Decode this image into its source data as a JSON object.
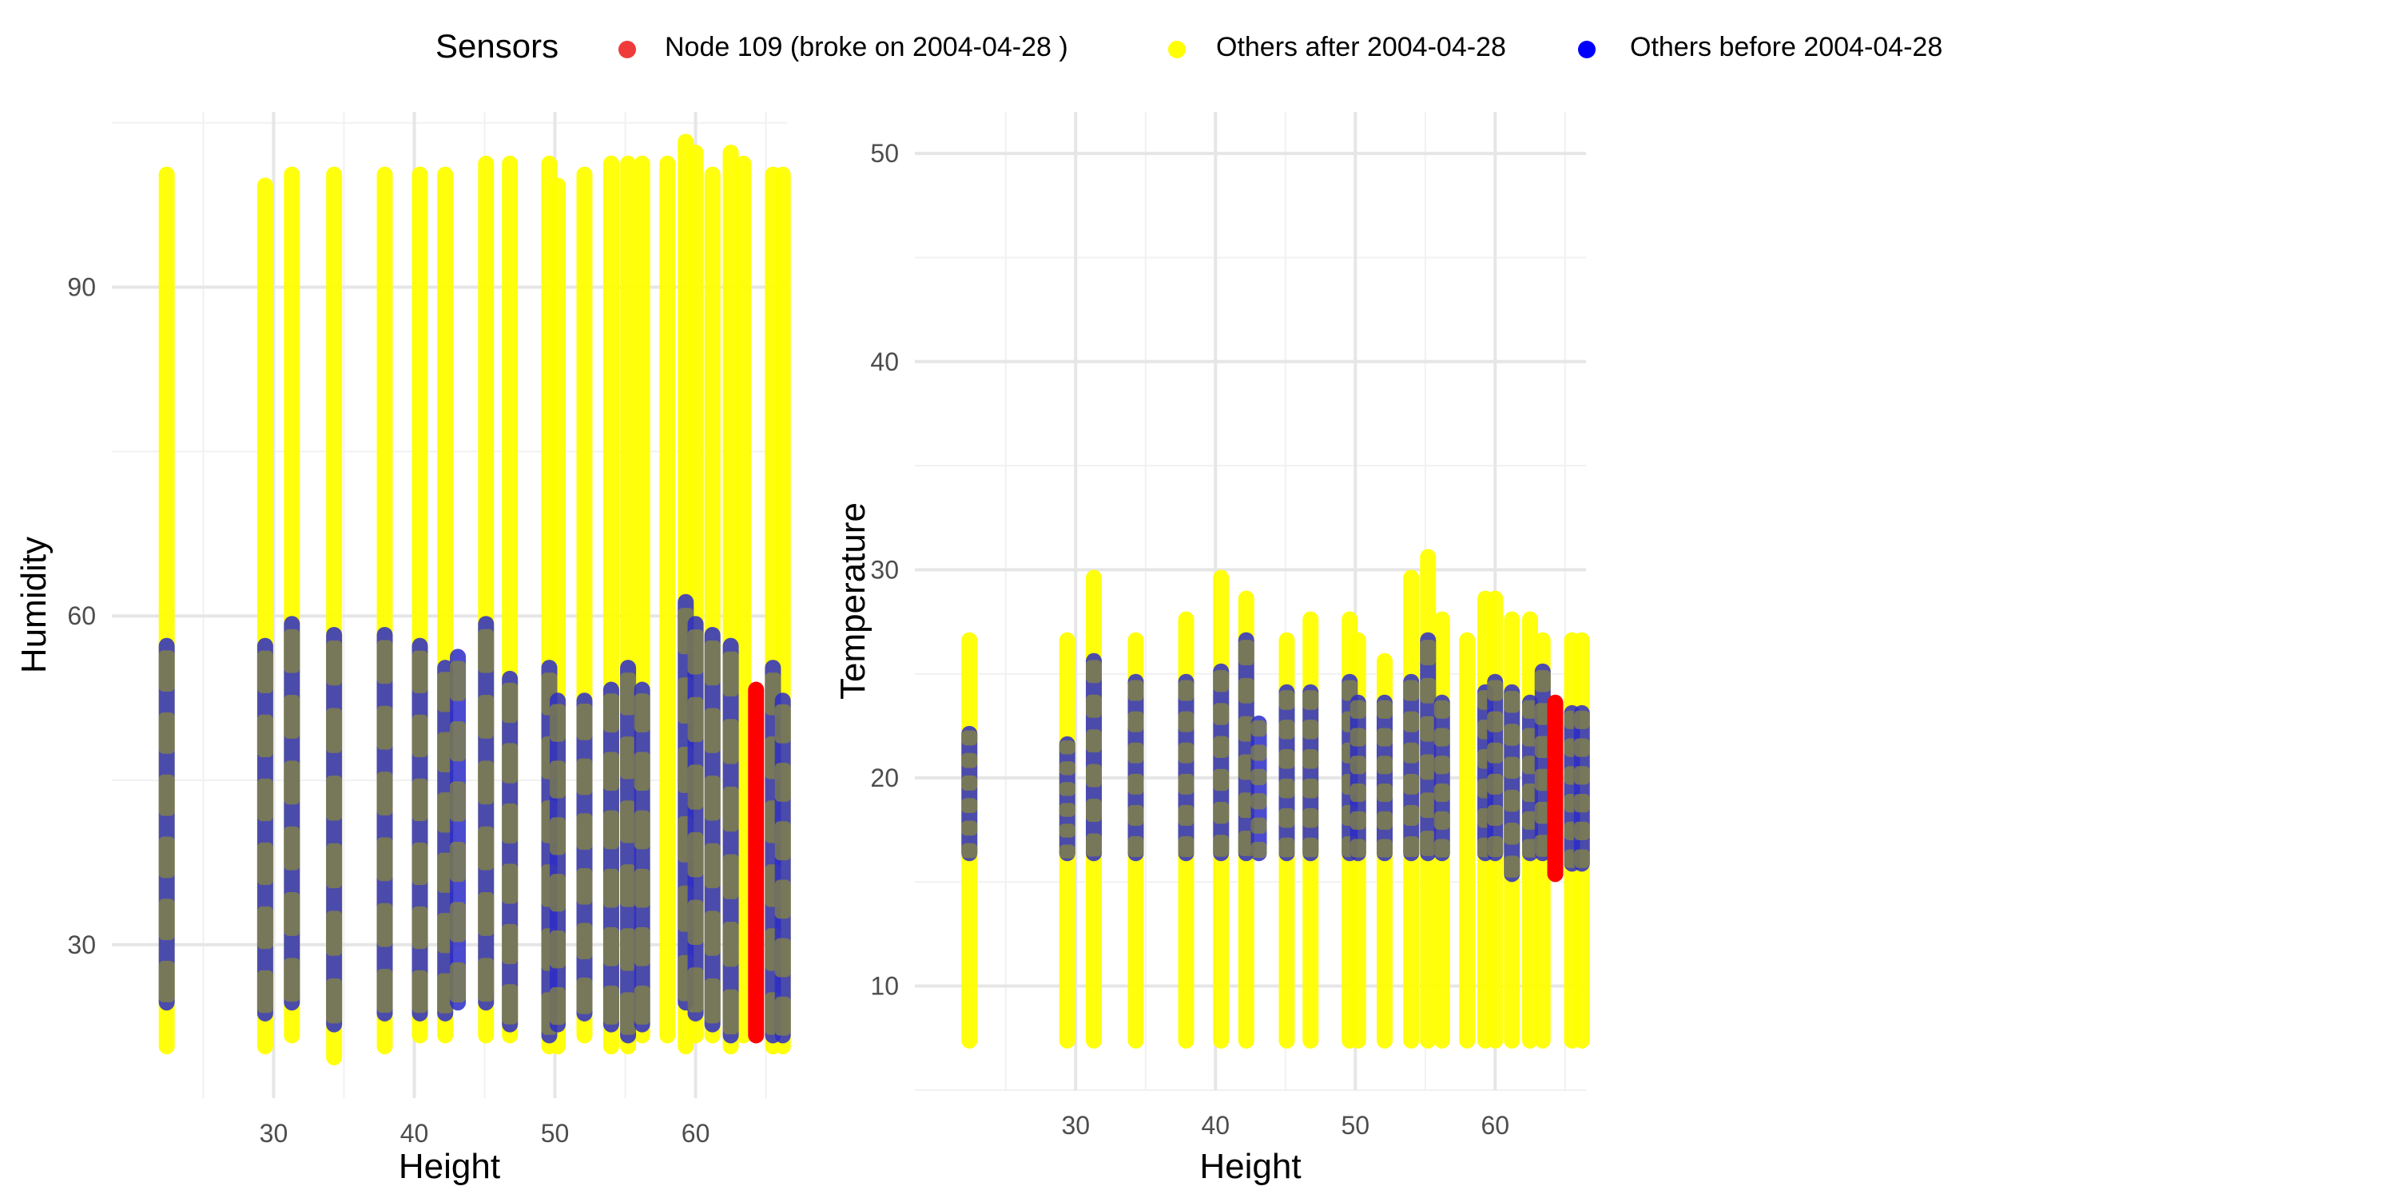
{
  "legend": {
    "title": "Sensors",
    "items": [
      {
        "label": "Node  109 (broke on  2004-04-28 )",
        "color": "#f03b3b"
      },
      {
        "label": "Others after  2004-04-28",
        "color": "#ffff00"
      },
      {
        "label": "Others before  2004-04-28",
        "color": "#0000ff"
      }
    ]
  },
  "colors": {
    "node109": "#ff0000",
    "after": "#ffff00",
    "before": "#2b2bc8",
    "before_overlap": "#8a8a38"
  },
  "chart_data": [
    {
      "type": "scatter",
      "title": "",
      "xlabel": "Height",
      "ylabel": "Humidity",
      "xlim": [
        18.5,
        66.5
      ],
      "ylim": [
        16,
        106
      ],
      "xticks": [
        30,
        40,
        50,
        60
      ],
      "yticks": [
        30,
        60,
        90
      ],
      "grid": true,
      "series": [
        {
          "name": "Others after  2004-04-28",
          "points": [
            {
              "x": 22.4,
              "y0": 20,
              "y1": 101
            },
            {
              "x": 29.4,
              "y0": 20,
              "y1": 100
            },
            {
              "x": 31.3,
              "y0": 21,
              "y1": 101
            },
            {
              "x": 34.3,
              "y0": 19,
              "y1": 101
            },
            {
              "x": 37.9,
              "y0": 20,
              "y1": 101
            },
            {
              "x": 40.4,
              "y0": 21,
              "y1": 101
            },
            {
              "x": 42.2,
              "y0": 21,
              "y1": 101
            },
            {
              "x": 45.1,
              "y0": 21,
              "y1": 102
            },
            {
              "x": 46.8,
              "y0": 21,
              "y1": 102
            },
            {
              "x": 49.6,
              "y0": 20,
              "y1": 102
            },
            {
              "x": 50.2,
              "y0": 20,
              "y1": 100
            },
            {
              "x": 52.1,
              "y0": 21,
              "y1": 101
            },
            {
              "x": 54.0,
              "y0": 20,
              "y1": 102
            },
            {
              "x": 55.2,
              "y0": 20,
              "y1": 102
            },
            {
              "x": 56.2,
              "y0": 21,
              "y1": 102
            },
            {
              "x": 58.0,
              "y0": 21,
              "y1": 102
            },
            {
              "x": 59.3,
              "y0": 20,
              "y1": 104
            },
            {
              "x": 60.0,
              "y0": 21,
              "y1": 103
            },
            {
              "x": 61.2,
              "y0": 21,
              "y1": 101
            },
            {
              "x": 62.5,
              "y0": 20,
              "y1": 103
            },
            {
              "x": 63.4,
              "y0": 21,
              "y1": 102
            },
            {
              "x": 65.5,
              "y0": 20,
              "y1": 101
            },
            {
              "x": 66.2,
              "y0": 20,
              "y1": 101
            }
          ]
        },
        {
          "name": "Others before  2004-04-28",
          "points": [
            {
              "x": 22.4,
              "y0": 24,
              "y1": 58
            },
            {
              "x": 29.4,
              "y0": 23,
              "y1": 58
            },
            {
              "x": 31.3,
              "y0": 24,
              "y1": 60
            },
            {
              "x": 34.3,
              "y0": 22,
              "y1": 59
            },
            {
              "x": 37.9,
              "y0": 23,
              "y1": 59
            },
            {
              "x": 40.4,
              "y0": 23,
              "y1": 58
            },
            {
              "x": 42.2,
              "y0": 23,
              "y1": 56
            },
            {
              "x": 43.1,
              "y0": 24,
              "y1": 57
            },
            {
              "x": 45.1,
              "y0": 24,
              "y1": 60
            },
            {
              "x": 46.8,
              "y0": 22,
              "y1": 55
            },
            {
              "x": 49.6,
              "y0": 21,
              "y1": 56
            },
            {
              "x": 50.2,
              "y0": 22,
              "y1": 53
            },
            {
              "x": 52.1,
              "y0": 23,
              "y1": 53
            },
            {
              "x": 54.0,
              "y0": 22,
              "y1": 54
            },
            {
              "x": 55.2,
              "y0": 21,
              "y1": 56
            },
            {
              "x": 56.2,
              "y0": 22,
              "y1": 54
            },
            {
              "x": 59.3,
              "y0": 24,
              "y1": 62
            },
            {
              "x": 60.0,
              "y0": 23,
              "y1": 60
            },
            {
              "x": 61.2,
              "y0": 22,
              "y1": 59
            },
            {
              "x": 62.5,
              "y0": 21,
              "y1": 58
            },
            {
              "x": 65.5,
              "y0": 21,
              "y1": 56
            },
            {
              "x": 66.2,
              "y0": 21,
              "y1": 53
            }
          ]
        },
        {
          "name": "Node  109 (broke on  2004-04-28 )",
          "points": [
            {
              "x": 64.3,
              "y0": 21,
              "y1": 54
            }
          ]
        }
      ]
    },
    {
      "type": "scatter",
      "title": "",
      "xlabel": "Height",
      "ylabel": "Temperature",
      "xlim": [
        18.5,
        66.5
      ],
      "ylim": [
        5,
        52
      ],
      "xticks": [
        30,
        40,
        50,
        60
      ],
      "yticks": [
        10,
        20,
        30,
        40,
        50
      ],
      "grid": true,
      "series": [
        {
          "name": "Others after  2004-04-28",
          "points": [
            {
              "x": 22.4,
              "y0": 7,
              "y1": 27
            },
            {
              "x": 29.4,
              "y0": 7,
              "y1": 27
            },
            {
              "x": 31.3,
              "y0": 7,
              "y1": 30
            },
            {
              "x": 34.3,
              "y0": 7,
              "y1": 27
            },
            {
              "x": 37.9,
              "y0": 7,
              "y1": 28
            },
            {
              "x": 40.4,
              "y0": 7,
              "y1": 30
            },
            {
              "x": 42.2,
              "y0": 7,
              "y1": 29
            },
            {
              "x": 45.1,
              "y0": 7,
              "y1": 27
            },
            {
              "x": 46.8,
              "y0": 7,
              "y1": 28
            },
            {
              "x": 49.6,
              "y0": 7,
              "y1": 28
            },
            {
              "x": 50.2,
              "y0": 7,
              "y1": 27
            },
            {
              "x": 52.1,
              "y0": 7,
              "y1": 26
            },
            {
              "x": 54.0,
              "y0": 7,
              "y1": 30
            },
            {
              "x": 55.2,
              "y0": 7,
              "y1": 31
            },
            {
              "x": 56.2,
              "y0": 7,
              "y1": 28
            },
            {
              "x": 58.0,
              "y0": 7,
              "y1": 27
            },
            {
              "x": 59.3,
              "y0": 7,
              "y1": 29
            },
            {
              "x": 60.0,
              "y0": 7,
              "y1": 29
            },
            {
              "x": 61.2,
              "y0": 7,
              "y1": 28
            },
            {
              "x": 62.5,
              "y0": 7,
              "y1": 28
            },
            {
              "x": 63.4,
              "y0": 7,
              "y1": 27
            },
            {
              "x": 65.5,
              "y0": 7,
              "y1": 27
            },
            {
              "x": 66.2,
              "y0": 7,
              "y1": 27
            }
          ]
        },
        {
          "name": "Others before  2004-04-28",
          "points": [
            {
              "x": 22.4,
              "y0": 16,
              "y1": 22.5
            },
            {
              "x": 29.4,
              "y0": 16,
              "y1": 22
            },
            {
              "x": 31.3,
              "y0": 16,
              "y1": 26
            },
            {
              "x": 34.3,
              "y0": 16,
              "y1": 25
            },
            {
              "x": 37.9,
              "y0": 16,
              "y1": 25
            },
            {
              "x": 40.4,
              "y0": 16,
              "y1": 25.5
            },
            {
              "x": 42.2,
              "y0": 16,
              "y1": 27
            },
            {
              "x": 43.1,
              "y0": 16,
              "y1": 23
            },
            {
              "x": 45.1,
              "y0": 16,
              "y1": 24.5
            },
            {
              "x": 46.8,
              "y0": 16,
              "y1": 24.5
            },
            {
              "x": 49.6,
              "y0": 16,
              "y1": 25
            },
            {
              "x": 50.2,
              "y0": 16,
              "y1": 24
            },
            {
              "x": 52.1,
              "y0": 16,
              "y1": 24
            },
            {
              "x": 54.0,
              "y0": 16,
              "y1": 25
            },
            {
              "x": 55.2,
              "y0": 16,
              "y1": 27
            },
            {
              "x": 56.2,
              "y0": 16,
              "y1": 24
            },
            {
              "x": 59.3,
              "y0": 16,
              "y1": 24.5
            },
            {
              "x": 60.0,
              "y0": 16,
              "y1": 25
            },
            {
              "x": 61.2,
              "y0": 15,
              "y1": 24.5
            },
            {
              "x": 62.5,
              "y0": 16,
              "y1": 24
            },
            {
              "x": 63.4,
              "y0": 16,
              "y1": 25.5
            },
            {
              "x": 65.5,
              "y0": 15.5,
              "y1": 23.5
            },
            {
              "x": 66.2,
              "y0": 15.5,
              "y1": 23.5
            }
          ]
        },
        {
          "name": "Node  109 (broke on  2004-04-28 )",
          "points": [
            {
              "x": 64.3,
              "y0": 15,
              "y1": 24
            }
          ]
        }
      ]
    }
  ]
}
